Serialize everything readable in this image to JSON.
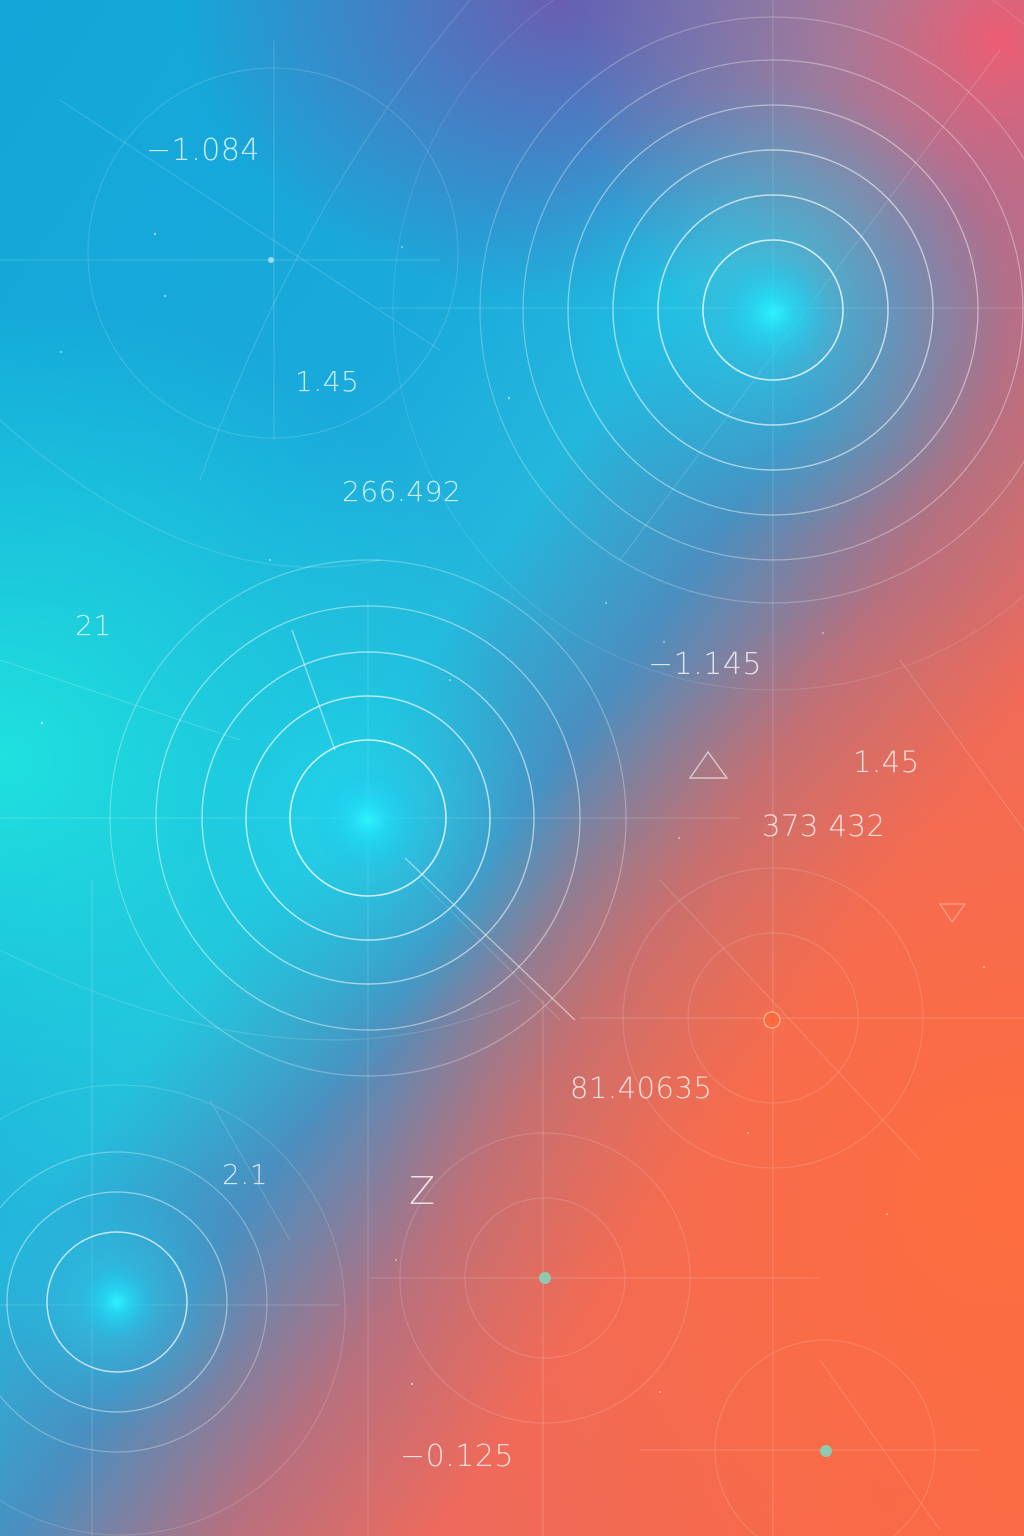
{
  "labels": {
    "top_left_value": "−1.084",
    "upper_mid_small": "1.45",
    "upper_mid_large": "266.492",
    "left_edge": "21",
    "right_mid_negative": "−1.145",
    "right_mid_small": "1.45",
    "right_mid_large": "373 432",
    "lower_center": "81.40635",
    "lower_left": "2.1",
    "letter_z": "Z",
    "bottom_value": "−0.125"
  },
  "colors": {
    "cyan_glow": "#1ee4f8",
    "orange_dot": "#ff6a3c",
    "teal_dot": "#8fc9b0",
    "line": "#ffffff"
  }
}
